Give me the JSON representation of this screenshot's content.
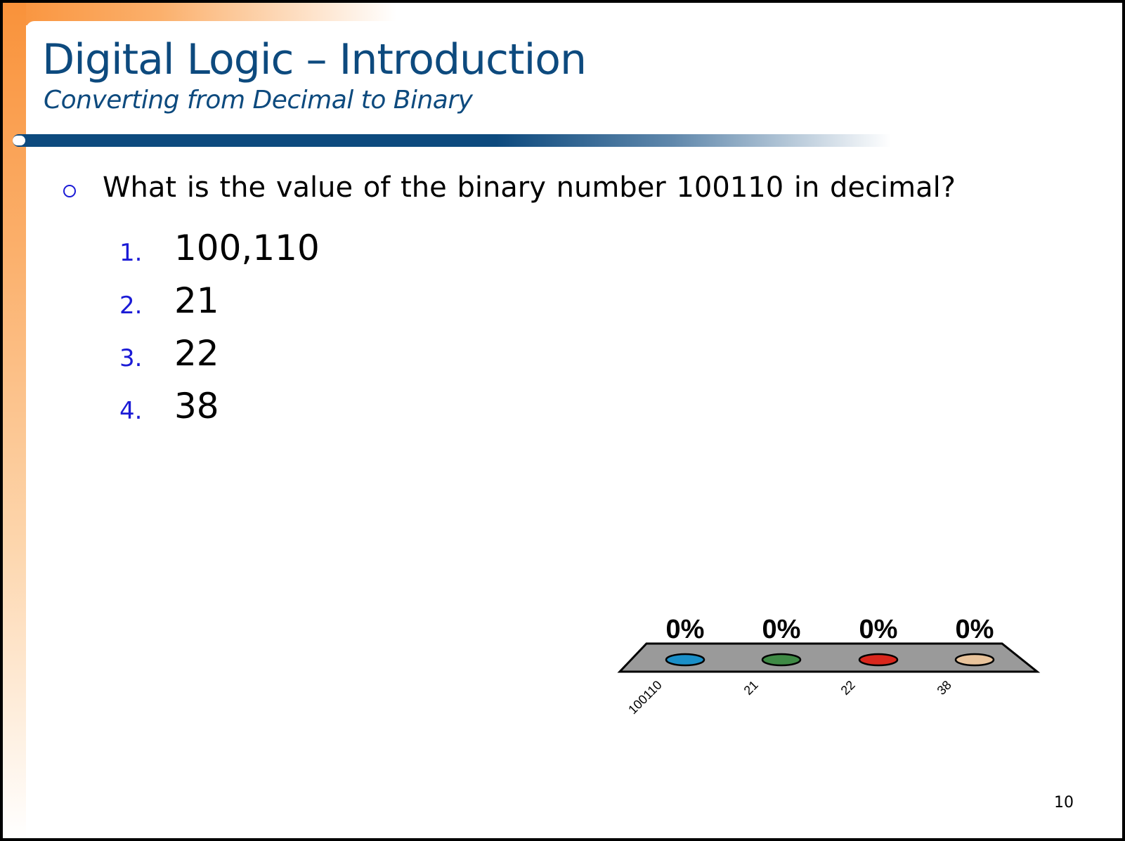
{
  "slide": {
    "title": "Digital Logic – Introduction",
    "subtitle": "Converting from Decimal to Binary",
    "question": "What is the value of the binary number 100110 in decimal?",
    "options": [
      {
        "number": "1.",
        "text": "100,110"
      },
      {
        "number": "2.",
        "text": "21"
      },
      {
        "number": "3.",
        "text": "22"
      },
      {
        "number": "4.",
        "text": "38"
      }
    ],
    "page_number": "10"
  },
  "poll_results": {
    "type": "bar",
    "categories": [
      "100110",
      "21",
      "22",
      "38"
    ],
    "values": [
      0,
      0,
      0,
      0
    ],
    "value_labels": [
      "0%",
      "0%",
      "0%",
      "0%"
    ],
    "colors": [
      "#1a8fc8",
      "#3f8a45",
      "#d9261c",
      "#e8c39b"
    ]
  },
  "colors": {
    "title": "#0d4a7e",
    "accent_orange": "#f9923a",
    "list_number": "#1b1bd6"
  }
}
